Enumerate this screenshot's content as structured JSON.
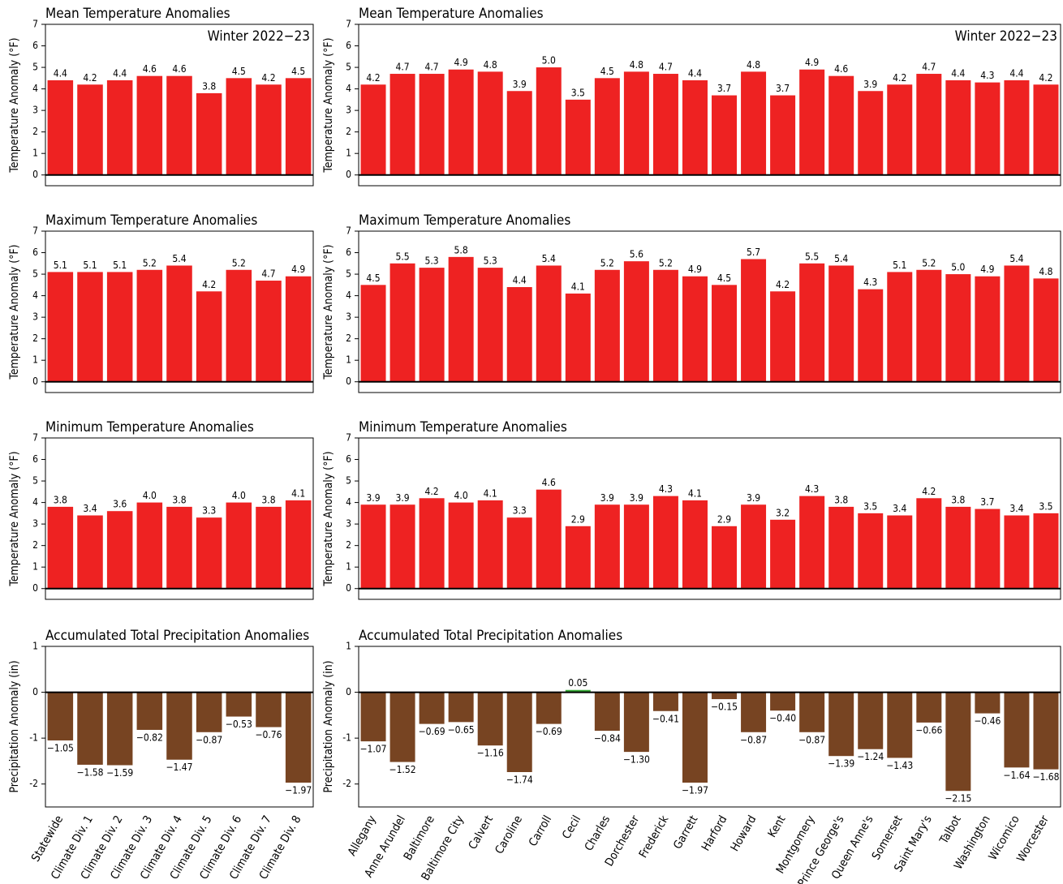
{
  "chart_data": [
    {
      "type": "bar",
      "title": "Mean Temperature Anomalies",
      "subtitle": "Winter 2022−23",
      "ylabel": "Temperature Anomaly (°F)",
      "color": "#ee2222",
      "values": [
        4.4,
        4.2,
        4.4,
        4.6,
        4.6,
        3.8,
        4.5,
        4.2,
        4.5
      ],
      "value_labels": [
        "4.4",
        "4.2",
        "4.4",
        "4.6",
        "4.6",
        "3.8",
        "4.5",
        "4.2",
        "4.5"
      ],
      "ylim": [
        -0.5,
        7
      ],
      "yticks": [
        0,
        1,
        2,
        3,
        4,
        5,
        6,
        7
      ],
      "grid": false
    },
    {
      "type": "bar",
      "title": "Mean Temperature Anomalies",
      "subtitle": "Winter 2022−23",
      "ylabel": "Temperature Anomaly (°F)",
      "color": "#ee2222",
      "values": [
        4.2,
        4.7,
        4.7,
        4.9,
        4.8,
        3.9,
        5.0,
        3.5,
        4.5,
        4.8,
        4.7,
        4.4,
        3.7,
        4.8,
        3.7,
        4.9,
        4.6,
        3.9,
        4.2,
        4.7,
        4.4,
        4.3,
        4.4,
        4.2
      ],
      "value_labels": [
        "4.2",
        "4.7",
        "4.7",
        "4.9",
        "4.8",
        "3.9",
        "5.0",
        "3.5",
        "4.5",
        "4.8",
        "4.7",
        "4.4",
        "3.7",
        "4.8",
        "3.7",
        "4.9",
        "4.6",
        "3.9",
        "4.2",
        "4.7",
        "4.4",
        "4.3",
        "4.4",
        "4.2"
      ],
      "ylim": [
        -0.5,
        7
      ],
      "yticks": [
        0,
        1,
        2,
        3,
        4,
        5,
        6,
        7
      ],
      "grid": false
    },
    {
      "type": "bar",
      "title": "Maximum Temperature Anomalies",
      "ylabel": "Temperature Anomaly (°F)",
      "color": "#ee2222",
      "values": [
        5.1,
        5.1,
        5.1,
        5.2,
        5.4,
        4.2,
        5.2,
        4.7,
        4.9
      ],
      "value_labels": [
        "5.1",
        "5.1",
        "5.1",
        "5.2",
        "5.4",
        "4.2",
        "5.2",
        "4.7",
        "4.9"
      ],
      "ylim": [
        -0.5,
        7
      ],
      "yticks": [
        0,
        1,
        2,
        3,
        4,
        5,
        6,
        7
      ],
      "grid": false
    },
    {
      "type": "bar",
      "title": "Maximum Temperature Anomalies",
      "ylabel": "Temperature Anomaly (°F)",
      "color": "#ee2222",
      "values": [
        4.5,
        5.5,
        5.3,
        5.8,
        5.3,
        4.4,
        5.4,
        4.1,
        5.2,
        5.6,
        5.2,
        4.9,
        4.5,
        5.7,
        4.2,
        5.5,
        5.4,
        4.3,
        5.1,
        5.2,
        5.0,
        4.9,
        5.4,
        4.8
      ],
      "value_labels": [
        "4.5",
        "5.5",
        "5.3",
        "5.8",
        "5.3",
        "4.4",
        "5.4",
        "4.1",
        "5.2",
        "5.6",
        "5.2",
        "4.9",
        "4.5",
        "5.7",
        "4.2",
        "5.5",
        "5.4",
        "4.3",
        "5.1",
        "5.2",
        "5.0",
        "4.9",
        "5.4",
        "4.8"
      ],
      "ylim": [
        -0.5,
        7
      ],
      "yticks": [
        0,
        1,
        2,
        3,
        4,
        5,
        6,
        7
      ],
      "grid": false
    },
    {
      "type": "bar",
      "title": "Minimum Temperature Anomalies",
      "ylabel": "Temperature Anomaly (°F)",
      "color": "#ee2222",
      "values": [
        3.8,
        3.4,
        3.6,
        4.0,
        3.8,
        3.3,
        4.0,
        3.8,
        4.1
      ],
      "value_labels": [
        "3.8",
        "3.4",
        "3.6",
        "4.0",
        "3.8",
        "3.3",
        "4.0",
        "3.8",
        "4.1"
      ],
      "ylim": [
        -0.5,
        7
      ],
      "yticks": [
        0,
        1,
        2,
        3,
        4,
        5,
        6,
        7
      ],
      "grid": false
    },
    {
      "type": "bar",
      "title": "Minimum Temperature Anomalies",
      "ylabel": "Temperature Anomaly (°F)",
      "color": "#ee2222",
      "values": [
        3.9,
        3.9,
        4.2,
        4.0,
        4.1,
        3.3,
        4.6,
        2.9,
        3.9,
        3.9,
        4.3,
        4.1,
        2.9,
        3.9,
        3.2,
        4.3,
        3.8,
        3.5,
        3.4,
        4.2,
        3.8,
        3.7,
        3.4,
        3.5
      ],
      "value_labels": [
        "3.9",
        "3.9",
        "4.2",
        "4.0",
        "4.1",
        "3.3",
        "4.6",
        "2.9",
        "3.9",
        "3.9",
        "4.3",
        "4.1",
        "2.9",
        "3.9",
        "3.2",
        "4.3",
        "3.8",
        "3.5",
        "3.4",
        "4.2",
        "3.8",
        "3.7",
        "3.4",
        "3.5"
      ],
      "ylim": [
        -0.5,
        7
      ],
      "yticks": [
        0,
        1,
        2,
        3,
        4,
        5,
        6,
        7
      ],
      "grid": false
    },
    {
      "type": "bar",
      "title": "Accumulated Total Precipitation Anomalies",
      "ylabel": "Precipitation Anomaly (in)",
      "color": "#774422",
      "positive_color": "#33aa33",
      "categories": [
        "Statewide",
        "Climate Div. 1",
        "Climate Div. 2",
        "Climate Div. 3",
        "Climate Div. 4",
        "Climate Div. 5",
        "Climate Div. 6",
        "Climate Div. 7",
        "Climate Div. 8"
      ],
      "values": [
        -1.05,
        -1.58,
        -1.59,
        -0.82,
        -1.47,
        -0.87,
        -0.53,
        -0.76,
        -1.97
      ],
      "value_labels": [
        "−1.05",
        "−1.58",
        "−1.59",
        "−0.82",
        "−1.47",
        "−0.87",
        "−0.53",
        "−0.76",
        "−1.97"
      ],
      "ylim": [
        -2.5,
        1
      ],
      "yticks": [
        -2,
        -1,
        0,
        1
      ],
      "grid": false
    },
    {
      "type": "bar",
      "title": "Accumulated Total Precipitation Anomalies",
      "ylabel": "Precipitation Anomaly (in)",
      "color": "#774422",
      "positive_color": "#33aa33",
      "categories": [
        "Allegany",
        "Anne Arundel",
        "Baltimore",
        "Baltimore City",
        "Calvert",
        "Caroline",
        "Carroll",
        "Cecil",
        "Charles",
        "Dorchester",
        "Frederick",
        "Garrett",
        "Harford",
        "Howard",
        "Kent",
        "Montgomery",
        "Prince George's",
        "Queen Anne's",
        "Somerset",
        "Saint Mary's",
        "Talbot",
        "Washington",
        "Wicomico",
        "Worcester"
      ],
      "values": [
        -1.07,
        -1.52,
        -0.69,
        -0.65,
        -1.16,
        -1.74,
        -0.69,
        0.05,
        -0.84,
        -1.3,
        -0.41,
        -1.97,
        -0.15,
        -0.87,
        -0.4,
        -0.87,
        -1.39,
        -1.24,
        -1.43,
        -0.66,
        -2.15,
        -0.46,
        -1.64,
        -1.68
      ],
      "value_labels": [
        "−1.07",
        "−1.52",
        "−0.69",
        "−0.65",
        "−1.16",
        "−1.74",
        "−0.69",
        "0.05",
        "−0.84",
        "−1.30",
        "−0.41",
        "−1.97",
        "−0.15",
        "−0.87",
        "−0.40",
        "−0.87",
        "−1.39",
        "−1.24",
        "−1.43",
        "−0.66",
        "−2.15",
        "−0.46",
        "−1.64",
        "−1.68"
      ],
      "ylim": [
        -2.5,
        1
      ],
      "yticks": [
        -2,
        -1,
        0,
        1
      ],
      "grid": false
    }
  ]
}
